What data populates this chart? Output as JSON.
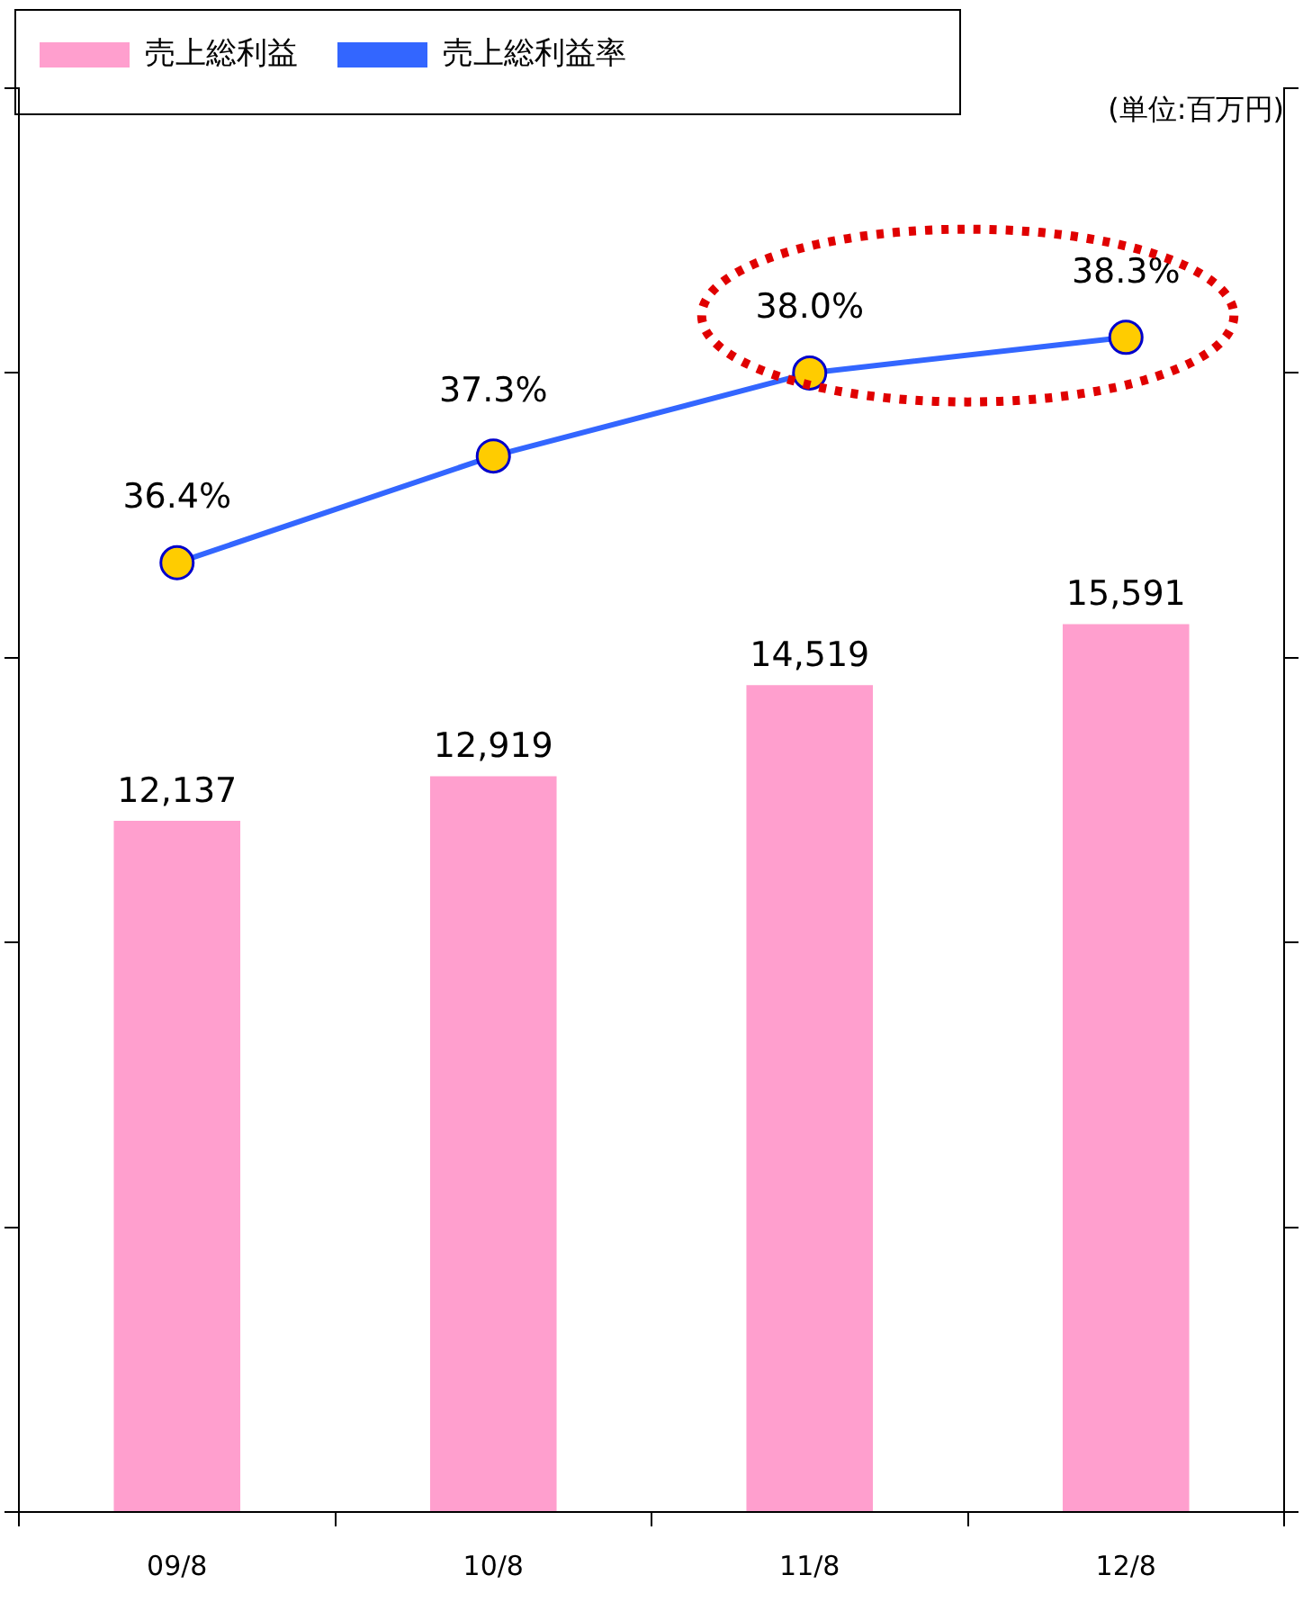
{
  "chart_data": {
    "type": "bar",
    "categories": [
      "09/8",
      "10/8",
      "11/8",
      "12/8"
    ],
    "series": [
      {
        "name": "売上総利益",
        "color": "#ff9fce",
        "values": [
          12137,
          12919,
          14519,
          15591
        ],
        "value_labels": [
          "12,137",
          "12,919",
          "14,519",
          "15,591"
        ]
      },
      {
        "name": "売上総利益率",
        "type": "line",
        "axis": "y2",
        "color": "#3366ff",
        "values": [
          36.4,
          37.3,
          38.0,
          38.3
        ],
        "value_labels": [
          "36.4%",
          "37.3%",
          "38.0%",
          "38.3%"
        ]
      }
    ],
    "ylim": [
      0,
      25000
    ],
    "yticks": [
      {
        "value": 0,
        "label": null
      },
      {
        "value": 5000,
        "label": null
      },
      {
        "value": 10000,
        "label": null
      },
      {
        "value": 15000,
        "label": null
      },
      {
        "value": 20000,
        "label": null
      },
      {
        "value": 25000,
        "label": null
      }
    ],
    "y2lim": [
      28.4,
      40.4
    ],
    "y2ticks": [
      {
        "value": 28.4,
        "label": null
      },
      {
        "value": 30.8,
        "label": null
      },
      {
        "value": 33.2,
        "label": null
      },
      {
        "value": 35.6,
        "label": null
      },
      {
        "value": 38.0,
        "label": null
      },
      {
        "value": 40.4,
        "label": null
      }
    ],
    "annotations": [
      "(単位:百万円)"
    ],
    "grid": false,
    "legend": "top left",
    "marker": "circle",
    "tick_labels": "x"
  }
}
